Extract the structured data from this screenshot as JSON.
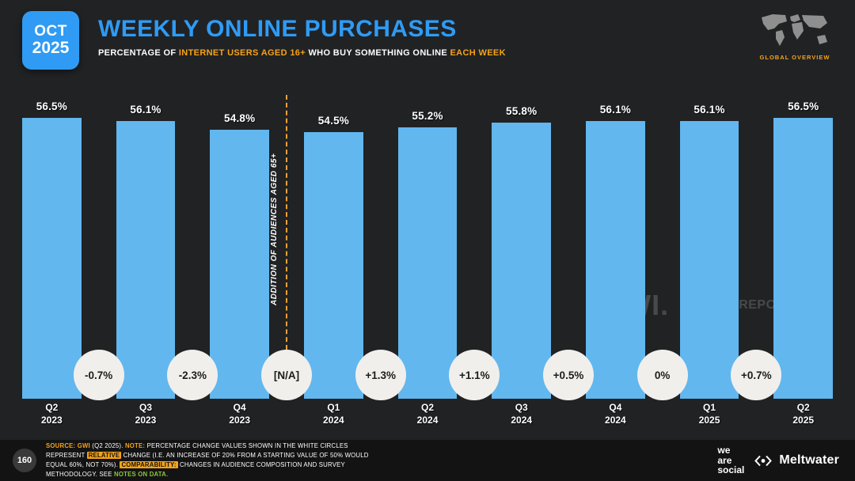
{
  "header": {
    "date_month": "OCT",
    "date_year": "2025",
    "title": "WEEKLY ONLINE PURCHASES",
    "subtitle_segments": [
      {
        "text": "PERCENTAGE OF ",
        "style": "plain"
      },
      {
        "text": "INTERNET USERS AGED 16+ ",
        "style": "orange"
      },
      {
        "text": "WHO BUY SOMETHING ONLINE ",
        "style": "plain"
      },
      {
        "text": "EACH WEEK",
        "style": "orange"
      }
    ],
    "corner_label": "GLOBAL OVERVIEW"
  },
  "chart_data": {
    "type": "bar",
    "title": "WEEKLY ONLINE PURCHASES",
    "xlabel": "",
    "ylabel": "Percentage of internet users aged 16+ who buy something online each week",
    "categories": [
      "Q2 2023",
      "Q3 2023",
      "Q4 2023",
      "Q1 2024",
      "Q2 2024",
      "Q3 2024",
      "Q4 2024",
      "Q1 2025",
      "Q2 2025"
    ],
    "values": [
      56.5,
      56.1,
      54.8,
      54.5,
      55.2,
      55.8,
      56.1,
      56.1,
      56.5
    ],
    "value_labels": [
      "56.5%",
      "56.1%",
      "54.8%",
      "54.5%",
      "55.2%",
      "55.8%",
      "56.1%",
      "56.1%",
      "56.5%"
    ],
    "change_labels": [
      "-0.7%",
      "-2.3%",
      "[N/A]",
      "+1.3%",
      "+1.1%",
      "+0.5%",
      "0%",
      "+0.7%"
    ],
    "annotation": "ADDITION OF AUDIENCES AGED 65+",
    "annotation_after_index": 2,
    "ylim": [
      0,
      60
    ],
    "grid": false,
    "legend": "none",
    "bar_color": "#62b7ef"
  },
  "colors": {
    "accent_blue": "#2f9bf4",
    "accent_orange": "#f5a31a",
    "bar_blue": "#62b7ef",
    "link_green": "#8dc63f",
    "background": "#212224",
    "footer_background": "#131313",
    "circle_background": "#f1efec"
  },
  "watermarks": {
    "gwi": "GWI.",
    "datareportal": "DATAREPORTAL"
  },
  "footer": {
    "page_number": "160",
    "note_segments": [
      {
        "text": "SOURCE: ",
        "style": "orangeBold"
      },
      {
        "text": "GWI ",
        "style": "orangeBold",
        "link": true
      },
      {
        "text": "(Q2 2025). ",
        "style": "plain"
      },
      {
        "text": "NOTE: ",
        "style": "orangeBold"
      },
      {
        "text": "PERCENTAGE CHANGE VALUES SHOWN IN THE WHITE CIRCLES REPRESENT ",
        "style": "plain"
      },
      {
        "text": "RELATIVE",
        "style": "highlight"
      },
      {
        "text": " CHANGE (I.E. AN INCREASE OF 20% FROM A STARTING VALUE OF 50% WOULD EQUAL 60%, NOT 70%). ",
        "style": "plain"
      },
      {
        "text": "COMPARABILITY:",
        "style": "highlight"
      },
      {
        "text": " CHANGES IN AUDIENCE COMPOSITION AND SURVEY METHODOLOGY. SEE ",
        "style": "plain"
      },
      {
        "text": "NOTES ON DATA",
        "style": "green",
        "link": true
      },
      {
        "text": ".",
        "style": "plain"
      }
    ],
    "logos": {
      "we_are_social": [
        "we",
        "are",
        "social"
      ],
      "meltwater": "Meltwater"
    }
  }
}
